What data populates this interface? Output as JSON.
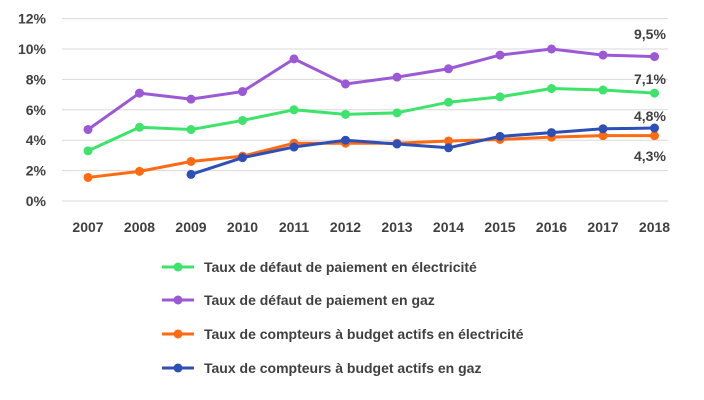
{
  "chart_data": {
    "type": "line",
    "x": [
      "2007",
      "2008",
      "2009",
      "2010",
      "2011",
      "2012",
      "2013",
      "2014",
      "2015",
      "2016",
      "2017",
      "2018"
    ],
    "yticks": [
      "0%",
      "2%",
      "4%",
      "6%",
      "8%",
      "10%",
      "12%"
    ],
    "ylim": [
      0,
      12
    ],
    "grid": "horizontal",
    "legend_position": "bottom",
    "series": [
      {
        "name": "Taux de défaut de paiement en électricité",
        "color": "#3de36b",
        "values": [
          3.3,
          4.85,
          4.7,
          5.3,
          6.0,
          5.7,
          5.8,
          6.5,
          6.85,
          7.4,
          7.3,
          7.1
        ],
        "end_label": "7,1%"
      },
      {
        "name": "Taux de défaut de paiement en gaz",
        "color": "#9b59d6",
        "values": [
          4.7,
          7.1,
          6.7,
          7.2,
          9.35,
          7.7,
          8.15,
          8.7,
          9.6,
          10.0,
          9.6,
          9.5
        ],
        "end_label": "9,5%"
      },
      {
        "name": "Taux de compteurs à budget actifs en électricité",
        "color": "#ff6a13",
        "values": [
          1.55,
          1.95,
          2.6,
          2.95,
          3.8,
          3.8,
          3.8,
          3.95,
          4.05,
          4.2,
          4.3,
          4.3
        ],
        "end_label": "4,3%"
      },
      {
        "name": "Taux de compteurs à budget actifs en gaz",
        "color": "#2e4fb5",
        "values": [
          null,
          null,
          1.75,
          2.85,
          3.55,
          4.0,
          3.75,
          3.5,
          4.25,
          4.5,
          4.75,
          4.8
        ],
        "end_label": "4,8%"
      }
    ]
  }
}
